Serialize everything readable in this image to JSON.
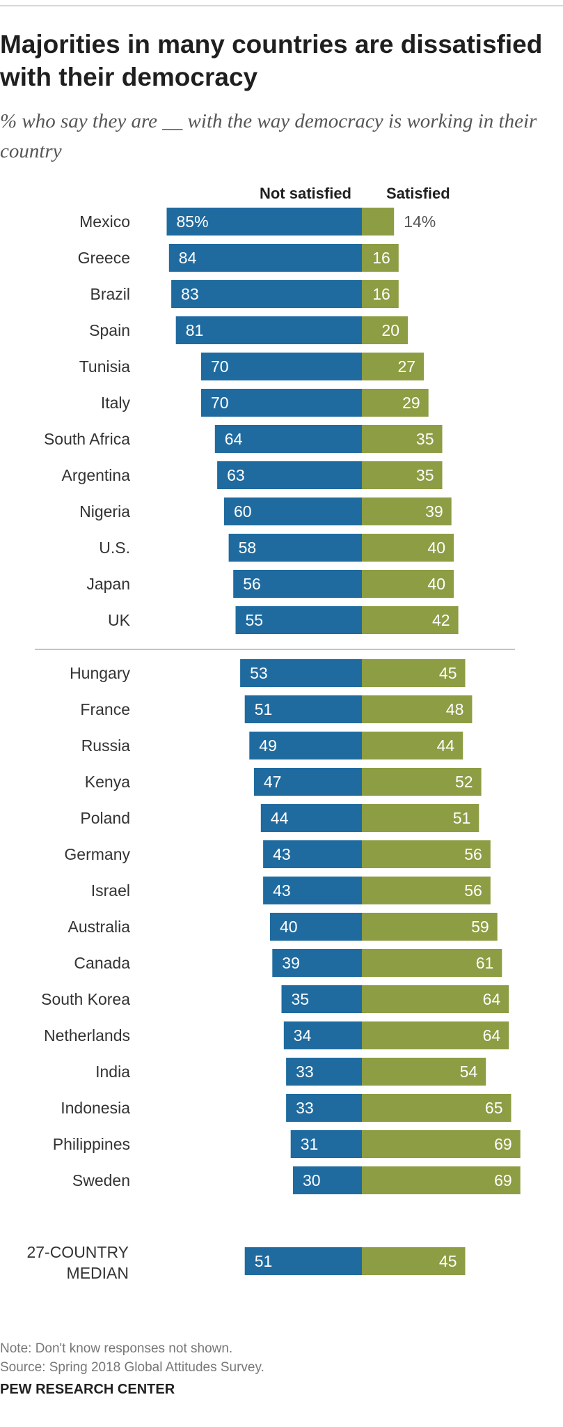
{
  "title": "Majorities in many countries are dissatisfied with their democracy",
  "subtitle": "% who say they are __ with the way democracy is working in their country",
  "note": "Note: Don't know responses not shown.",
  "source": "Source: Spring 2018 Global Attitudes Survey.",
  "footer": "PEW RESEARCH CENTER",
  "colors": {
    "not_satisfied": "#1f6ba0",
    "satisfied": "#8d9d44"
  },
  "chart_data": {
    "type": "bar",
    "orientation": "horizontal-diverging",
    "title": "Majorities in many countries are dissatisfied with their democracy",
    "categories": [
      "Mexico",
      "Greece",
      "Brazil",
      "Spain",
      "Tunisia",
      "Italy",
      "South Africa",
      "Argentina",
      "Nigeria",
      "U.S.",
      "Japan",
      "UK",
      "Hungary",
      "France",
      "Russia",
      "Kenya",
      "Poland",
      "Germany",
      "Israel",
      "Australia",
      "Canada",
      "South Korea",
      "Netherlands",
      "India",
      "Indonesia",
      "Philippines",
      "Sweden"
    ],
    "series": [
      {
        "name": "Not satisfied",
        "values": [
          85,
          84,
          83,
          81,
          70,
          70,
          64,
          63,
          60,
          58,
          56,
          55,
          53,
          51,
          49,
          47,
          44,
          43,
          43,
          40,
          39,
          35,
          34,
          33,
          33,
          31,
          30
        ]
      },
      {
        "name": "Satisfied",
        "values": [
          14,
          16,
          16,
          20,
          27,
          29,
          35,
          35,
          39,
          40,
          40,
          42,
          45,
          48,
          44,
          52,
          51,
          56,
          56,
          59,
          61,
          64,
          64,
          54,
          65,
          69,
          69
        ]
      }
    ],
    "first_value_labels": {
      "not_satisfied": "85%",
      "satisfied": "14%"
    },
    "median": {
      "label": "27-COUNTRY MEDIAN",
      "label_lines": [
        "27-COUNTRY",
        "MEDIAN"
      ],
      "not_satisfied": 51,
      "satisfied": 45
    }
  }
}
